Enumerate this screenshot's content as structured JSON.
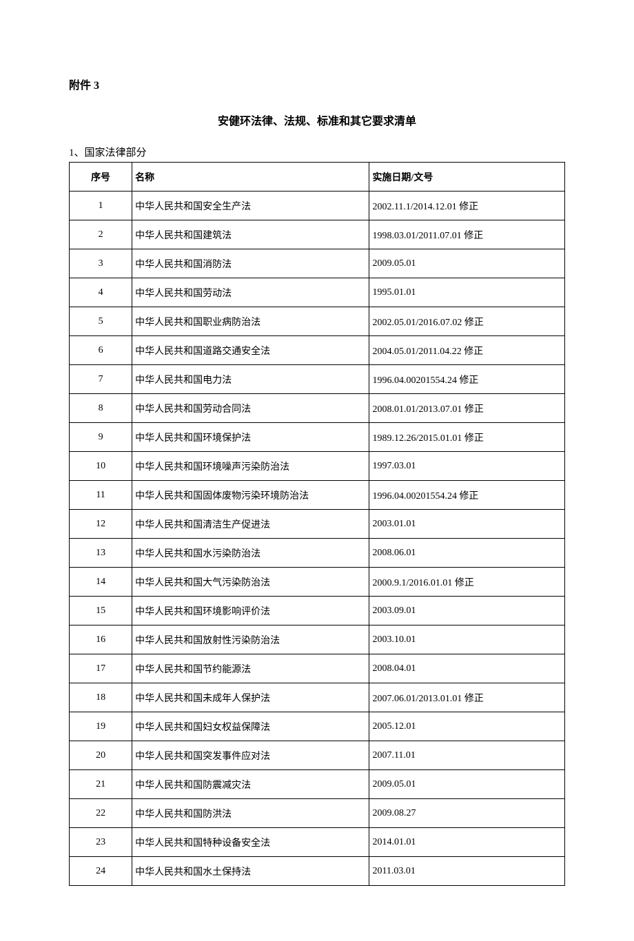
{
  "attachment_label": "附件 3",
  "title": "安健环法律、法规、标准和其它要求清单",
  "section_label": "1、国家法律部分",
  "table": {
    "headers": {
      "seq": "序号",
      "name": "名称",
      "date": "实施日期/文号"
    },
    "rows": [
      {
        "seq": "1",
        "name": "中华人民共和国安全生产法",
        "date": "2002.11.1/2014.12.01 修正"
      },
      {
        "seq": "2",
        "name": "中华人民共和国建筑法",
        "date": "1998.03.01/2011.07.01 修正"
      },
      {
        "seq": "3",
        "name": "中华人民共和国消防法",
        "date": "2009.05.01"
      },
      {
        "seq": "4",
        "name": "中华人民共和国劳动法",
        "date": "1995.01.01"
      },
      {
        "seq": "5",
        "name": "中华人民共和国职业病防治法",
        "date": "2002.05.01/2016.07.02 修正"
      },
      {
        "seq": "6",
        "name": "中华人民共和国道路交通安全法",
        "date": "2004.05.01/2011.04.22 修正"
      },
      {
        "seq": "7",
        "name": "中华人民共和国电力法",
        "date": "1996.04.00201554.24 修正"
      },
      {
        "seq": "8",
        "name": "中华人民共和国劳动合同法",
        "date": "2008.01.01/2013.07.01 修正"
      },
      {
        "seq": "9",
        "name": "中华人民共和国环境保护法",
        "date": "1989.12.26/2015.01.01 修正"
      },
      {
        "seq": "10",
        "name": "中华人民共和国环境噪声污染防治法",
        "date": "1997.03.01"
      },
      {
        "seq": "11",
        "name": "中华人民共和国固体废物污染环境防治法",
        "date": "1996.04.00201554.24 修正"
      },
      {
        "seq": "12",
        "name": "中华人民共和国清洁生产促进法",
        "date": "2003.01.01"
      },
      {
        "seq": "13",
        "name": "中华人民共和国水污染防治法",
        "date": "2008.06.01"
      },
      {
        "seq": "14",
        "name": "中华人民共和国大气污染防治法",
        "date": "2000.9.1/2016.01.01 修正"
      },
      {
        "seq": "15",
        "name": "中华人民共和国环境影响评价法",
        "date": "2003.09.01"
      },
      {
        "seq": "16",
        "name": "中华人民共和国放射性污染防治法",
        "date": "2003.10.01"
      },
      {
        "seq": "17",
        "name": "中华人民共和国节约能源法",
        "date": "2008.04.01"
      },
      {
        "seq": "18",
        "name": "中华人民共和国未成年人保护法",
        "date": "2007.06.01/2013.01.01 修正"
      },
      {
        "seq": "19",
        "name": "中华人民共和国妇女权益保障法",
        "date": "2005.12.01"
      },
      {
        "seq": "20",
        "name": "中华人民共和国突发事件应对法",
        "date": "2007.11.01"
      },
      {
        "seq": "21",
        "name": "中华人民共和国防震减灾法",
        "date": "2009.05.01"
      },
      {
        "seq": "22",
        "name": "中华人民共和国防洪法",
        "date": "2009.08.27"
      },
      {
        "seq": "23",
        "name": "中华人民共和国特种设备安全法",
        "date": "2014.01.01"
      },
      {
        "seq": "24",
        "name": "中华人民共和国水土保持法",
        "date": "2011.03.01"
      }
    ]
  }
}
